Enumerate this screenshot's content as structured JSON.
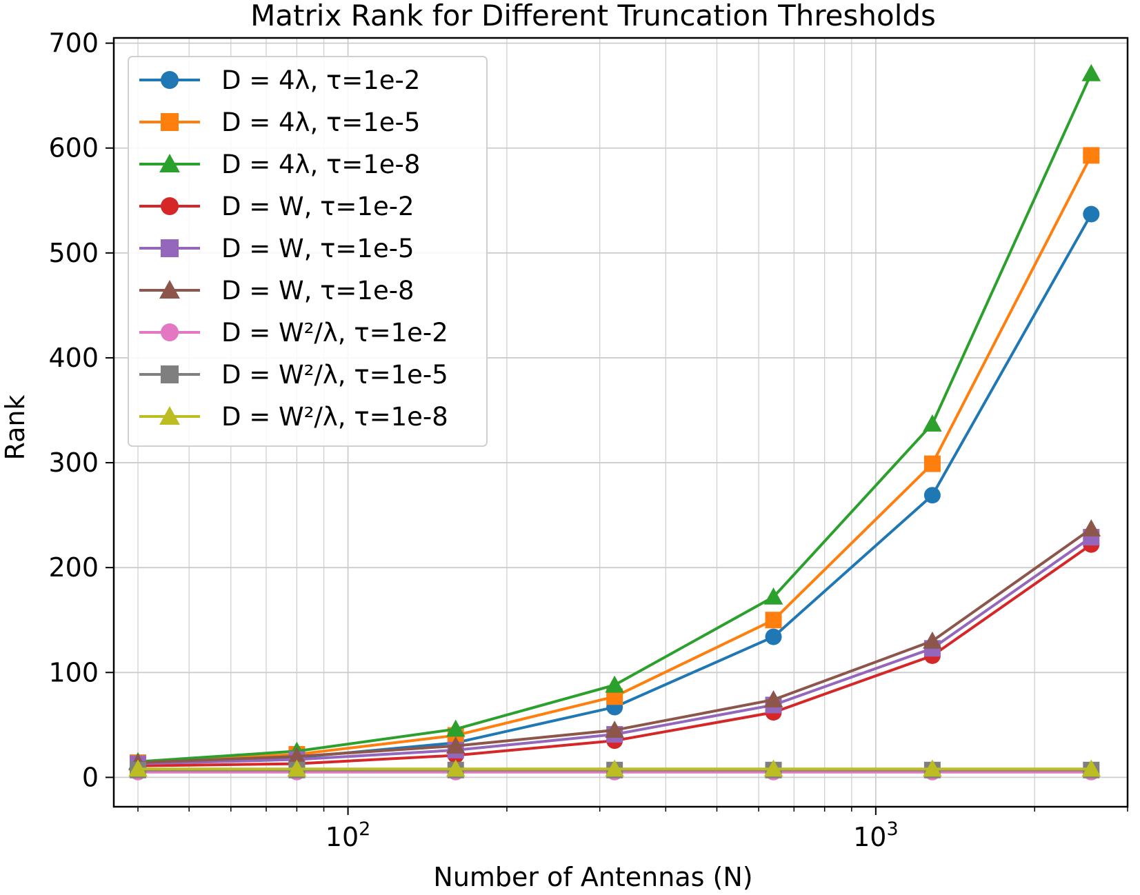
{
  "chart_data": {
    "type": "line",
    "title": "Matrix Rank for Different Truncation Thresholds",
    "xlabel": "Number of Antennas (N)",
    "ylabel": "Rank",
    "xscale": "log",
    "xlim": [
      36,
      3000
    ],
    "ylim": [
      -28,
      705
    ],
    "x": [
      40,
      80,
      160,
      320,
      640,
      1280,
      2560
    ],
    "x_ticks": [
      {
        "value": 100,
        "base": "10",
        "exp": "2"
      },
      {
        "value": 1000,
        "base": "10",
        "exp": "3"
      }
    ],
    "y_ticks": [
      0,
      100,
      200,
      300,
      400,
      500,
      600,
      700
    ],
    "grid": true,
    "legend_position": "upper left",
    "series": [
      {
        "name": "D = 4λ, τ=1e-2",
        "color": "#1f77b4",
        "marker": "circle",
        "values": [
          13,
          19,
          33,
          67,
          134,
          269,
          537
        ]
      },
      {
        "name": "D = 4λ, τ=1e-5",
        "color": "#ff7f0e",
        "marker": "square",
        "values": [
          14,
          22,
          40,
          77,
          150,
          299,
          593
        ]
      },
      {
        "name": "D = 4λ, τ=1e-8",
        "color": "#2ca02c",
        "marker": "triangle",
        "values": [
          15,
          25,
          46,
          88,
          172,
          337,
          671
        ]
      },
      {
        "name": "D = W, τ=1e-2",
        "color": "#d62728",
        "marker": "circle",
        "values": [
          11,
          13,
          21,
          35,
          62,
          116,
          222
        ]
      },
      {
        "name": "D = W, τ=1e-5",
        "color": "#9467bd",
        "marker": "square",
        "values": [
          13,
          17,
          26,
          41,
          69,
          123,
          229
        ]
      },
      {
        "name": "D = W, τ=1e-8",
        "color": "#8c564b",
        "marker": "triangle",
        "values": [
          14,
          20,
          30,
          45,
          74,
          130,
          237
        ]
      },
      {
        "name": "D = W²/λ, τ=1e-2",
        "color": "#e377c2",
        "marker": "circle",
        "values": [
          5,
          5,
          5,
          5,
          5,
          5,
          5
        ]
      },
      {
        "name": "D = W²/λ, τ=1e-5",
        "color": "#7f7f7f",
        "marker": "square",
        "values": [
          7,
          7,
          7,
          7,
          7,
          7,
          7
        ]
      },
      {
        "name": "D = W²/λ, τ=1e-8",
        "color": "#bcbd22",
        "marker": "triangle",
        "values": [
          8,
          8,
          8,
          8,
          8,
          8,
          8
        ]
      }
    ]
  }
}
